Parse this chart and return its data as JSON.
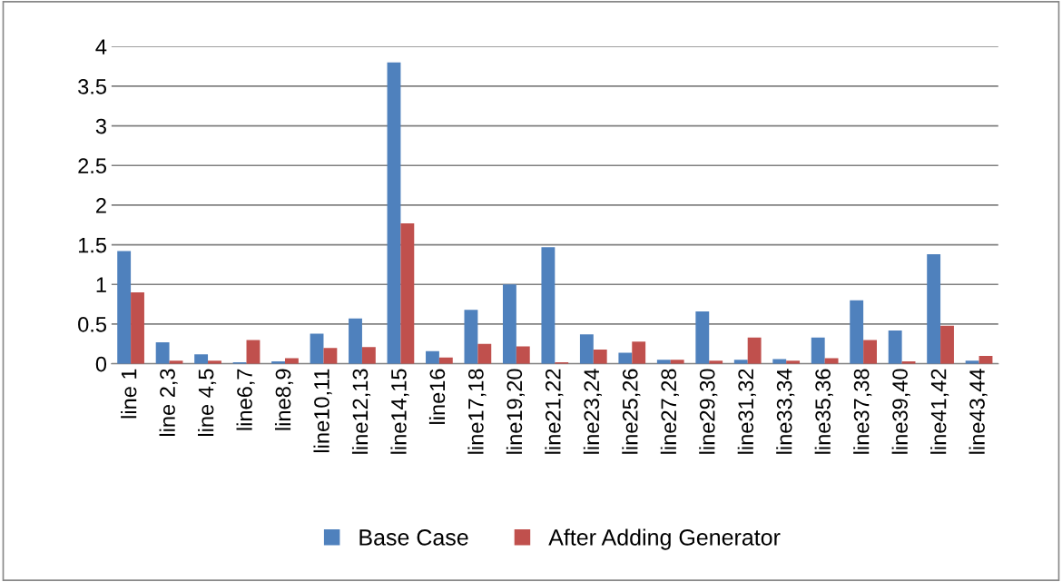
{
  "chart_data": {
    "type": "bar",
    "categories": [
      "line 1",
      "line 2,3",
      "line 4,5",
      "line6,7",
      "line8,9",
      "line10,11",
      "line12,13",
      "line14,15",
      "line16",
      "line17,18",
      "line19,20",
      "line21,22",
      "line23,24",
      "line25,26",
      "line27,28",
      "line29,30",
      "line31,32",
      "line33,34",
      "line35,36",
      "line37,38",
      "line39,40",
      "line41,42",
      "line43,44"
    ],
    "series": [
      {
        "name": "Base Case",
        "color": "#4f81bd",
        "values": [
          1.42,
          0.27,
          0.12,
          0.02,
          0.03,
          0.38,
          0.57,
          3.8,
          0.16,
          0.68,
          1.0,
          1.47,
          0.37,
          0.14,
          0.05,
          0.66,
          0.05,
          0.06,
          0.33,
          0.8,
          0.42,
          1.38,
          0.04
        ]
      },
      {
        "name": "After Adding Generator",
        "color": "#c0504d",
        "values": [
          0.9,
          0.04,
          0.04,
          0.3,
          0.07,
          0.2,
          0.21,
          1.77,
          0.08,
          0.25,
          0.22,
          0.02,
          0.18,
          0.28,
          0.05,
          0.04,
          0.33,
          0.04,
          0.07,
          0.3,
          0.03,
          0.48,
          0.1
        ]
      }
    ],
    "ylim": [
      0,
      4
    ],
    "yticks": [
      0,
      0.5,
      1,
      1.5,
      2,
      2.5,
      3,
      3.5,
      4
    ],
    "grid": "y",
    "legend": "bottom"
  }
}
